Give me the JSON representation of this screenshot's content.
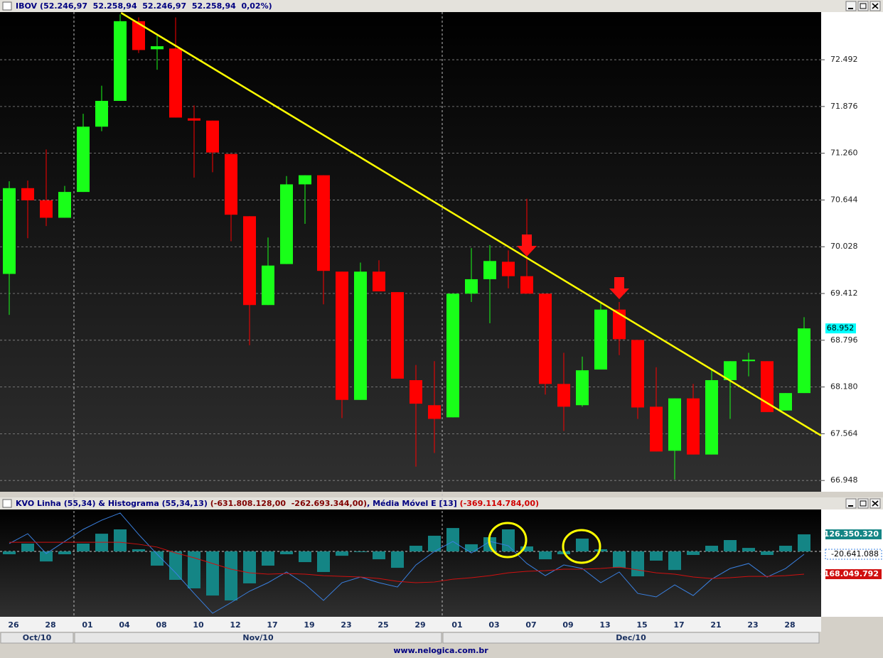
{
  "chart_data": [
    {
      "type": "candlestick",
      "title": "IBOV",
      "title_values": "(52.246,97  52.258,94  52.246,97  52.258,94  0,02%)",
      "categories": [
        "26",
        null,
        "28",
        null,
        "01",
        null,
        "04",
        null,
        "08",
        null,
        "10",
        null,
        "12",
        null,
        "17",
        null,
        "19",
        null,
        "23",
        null,
        "25",
        null,
        "29",
        null,
        "01",
        null,
        "03",
        null,
        "07",
        null,
        "09",
        null,
        "13",
        null,
        "15",
        null,
        "17",
        null,
        "21",
        null,
        "23",
        null,
        "28",
        null
      ],
      "open": [
        69.67,
        70.8,
        70.64,
        70.41,
        70.75,
        71.61,
        71.95,
        73.0,
        72.63,
        72.64,
        71.72,
        71.69,
        71.25,
        70.43,
        69.26,
        69.8,
        70.85,
        70.97,
        69.7,
        68.01,
        69.7,
        69.43,
        68.27,
        67.94,
        67.78,
        69.41,
        69.6,
        69.83,
        69.64,
        69.41,
        68.22,
        67.94,
        68.41,
        69.2,
        68.8,
        67.92,
        67.34,
        68.03,
        67.29,
        68.27,
        68.52,
        68.52,
        67.87,
        68.1
      ],
      "high": [
        70.89,
        70.9,
        71.31,
        70.83,
        71.78,
        72.15,
        73.09,
        73.05,
        72.81,
        73.05,
        71.89,
        71.69,
        71.25,
        70.43,
        70.15,
        70.96,
        70.97,
        70.97,
        69.7,
        69.82,
        69.85,
        69.43,
        68.47,
        68.52,
        69.41,
        70.01,
        70.05,
        69.98,
        70.66,
        69.41,
        68.63,
        68.58,
        69.3,
        69.3,
        68.8,
        68.44,
        68.03,
        68.22,
        68.41,
        68.52,
        68.63,
        68.52,
        68.1,
        69.1
      ],
      "low": [
        69.13,
        70.14,
        70.3,
        70.41,
        70.75,
        71.55,
        71.95,
        72.58,
        72.36,
        71.73,
        70.94,
        71.01,
        70.1,
        68.73,
        69.26,
        69.8,
        70.33,
        69.27,
        67.77,
        68.01,
        69.44,
        68.29,
        67.13,
        67.31,
        67.78,
        69.3,
        69.02,
        69.48,
        69.41,
        68.08,
        67.6,
        67.92,
        68.41,
        68.6,
        67.76,
        67.33,
        66.96,
        67.29,
        67.29,
        67.76,
        68.32,
        67.85,
        67.87,
        68.1
      ],
      "close": [
        70.8,
        70.64,
        70.41,
        70.75,
        71.61,
        71.95,
        73.0,
        72.62,
        72.67,
        71.73,
        71.69,
        71.27,
        70.45,
        69.26,
        69.78,
        70.85,
        70.97,
        69.71,
        68.01,
        69.7,
        69.44,
        68.29,
        67.96,
        67.76,
        69.41,
        69.6,
        69.84,
        69.64,
        69.41,
        68.22,
        67.92,
        68.4,
        69.2,
        68.81,
        67.91,
        67.33,
        68.03,
        67.29,
        68.27,
        68.52,
        68.54,
        67.85,
        68.1,
        68.952
      ],
      "up_color": "#19ff19",
      "down_color": "#ff0000",
      "ylim": [
        66.8,
        73.12
      ],
      "yticks": [
        66.948,
        67.564,
        {
          "value": 68.18,
          "label": "68.180"
        },
        68.796,
        69.412,
        70.028,
        70.644,
        {
          "value": 71.26,
          "label": "71.260"
        },
        71.876,
        72.492
      ],
      "grid": true,
      "trendline": {
        "x": [
          6.05,
          43.92
        ],
        "y": [
          73.11,
          67.54
        ],
        "color": "#ffff00"
      },
      "months": [
        "Oct/10",
        "Nov/10",
        "Dec/10"
      ],
      "footer": "www.nelogica.com.br"
    },
    {
      "type": "indicator",
      "title_parts": [
        {
          "text": "KVO Linha (55,34) & Histograma (55,34,13) ",
          "color": "#000080"
        },
        {
          "text": "(-631.808.128,00  -262.693.344,00)",
          "color": "#800000"
        },
        {
          "text": ", Média Móvel E [13] ",
          "color": "#000080"
        },
        {
          "text": "(-369.114.784,00)",
          "color": "#d00000"
        }
      ],
      "ylim": [
        -483000000,
        310000000
      ],
      "series": [
        {
          "type": "bar",
          "color": "#148585",
          "last_value_label": "126.350.320",
          "values": [
            -21000000,
            58000000,
            -74000000,
            -21000000,
            58000000,
            131000000,
            163000000,
            16000000,
            -105000000,
            -210000000,
            -273000000,
            -326000000,
            -362000000,
            -236000000,
            -105000000,
            -21000000,
            -79000000,
            -152000000,
            -32000000,
            -2000000,
            -58000000,
            -121000000,
            42000000,
            116000000,
            173000000,
            53000000,
            105000000,
            163000000,
            37000000,
            -58000000,
            -21000000,
            95000000,
            16000000,
            -121000000,
            -184000000,
            -68000000,
            -137000000,
            -26000000,
            42000000,
            84000000,
            26000000,
            -26000000,
            42000000,
            126350320
          ]
        },
        {
          "type": "line",
          "color": "#3a80e0",
          "last_value_label": "-20.641.088",
          "values": [
            58000000,
            131000000,
            -16000000,
            74000000,
            163000000,
            231000000,
            284000000,
            126000000,
            -21000000,
            -158000000,
            -310000000,
            -457000000,
            -378000000,
            -294000000,
            -231000000,
            -152000000,
            -242000000,
            -362000000,
            -231000000,
            -189000000,
            -231000000,
            -263000000,
            -100000000,
            0,
            74000000,
            -11000000,
            74000000,
            42000000,
            -89000000,
            -179000000,
            -100000000,
            -126000000,
            -231000000,
            -152000000,
            -310000000,
            -336000000,
            -247000000,
            -326000000,
            -205000000,
            -126000000,
            -89000000,
            -189000000,
            -126000000,
            -20641088
          ]
        },
        {
          "type": "line",
          "color": "#d01010",
          "last_value_label": "-168.049.792",
          "values": [
            68000000,
            68000000,
            68000000,
            68000000,
            68000000,
            68000000,
            68000000,
            53000000,
            32000000,
            -11000000,
            -47000000,
            -89000000,
            -131000000,
            -158000000,
            -168000000,
            -163000000,
            -168000000,
            -179000000,
            -184000000,
            -189000000,
            -200000000,
            -221000000,
            -231000000,
            -226000000,
            -205000000,
            -194000000,
            -179000000,
            -158000000,
            -147000000,
            -142000000,
            -131000000,
            -131000000,
            -126000000,
            -116000000,
            -137000000,
            -158000000,
            -168000000,
            -189000000,
            -200000000,
            -194000000,
            -184000000,
            -184000000,
            -179000000,
            -168049792
          ]
        }
      ]
    }
  ]
}
